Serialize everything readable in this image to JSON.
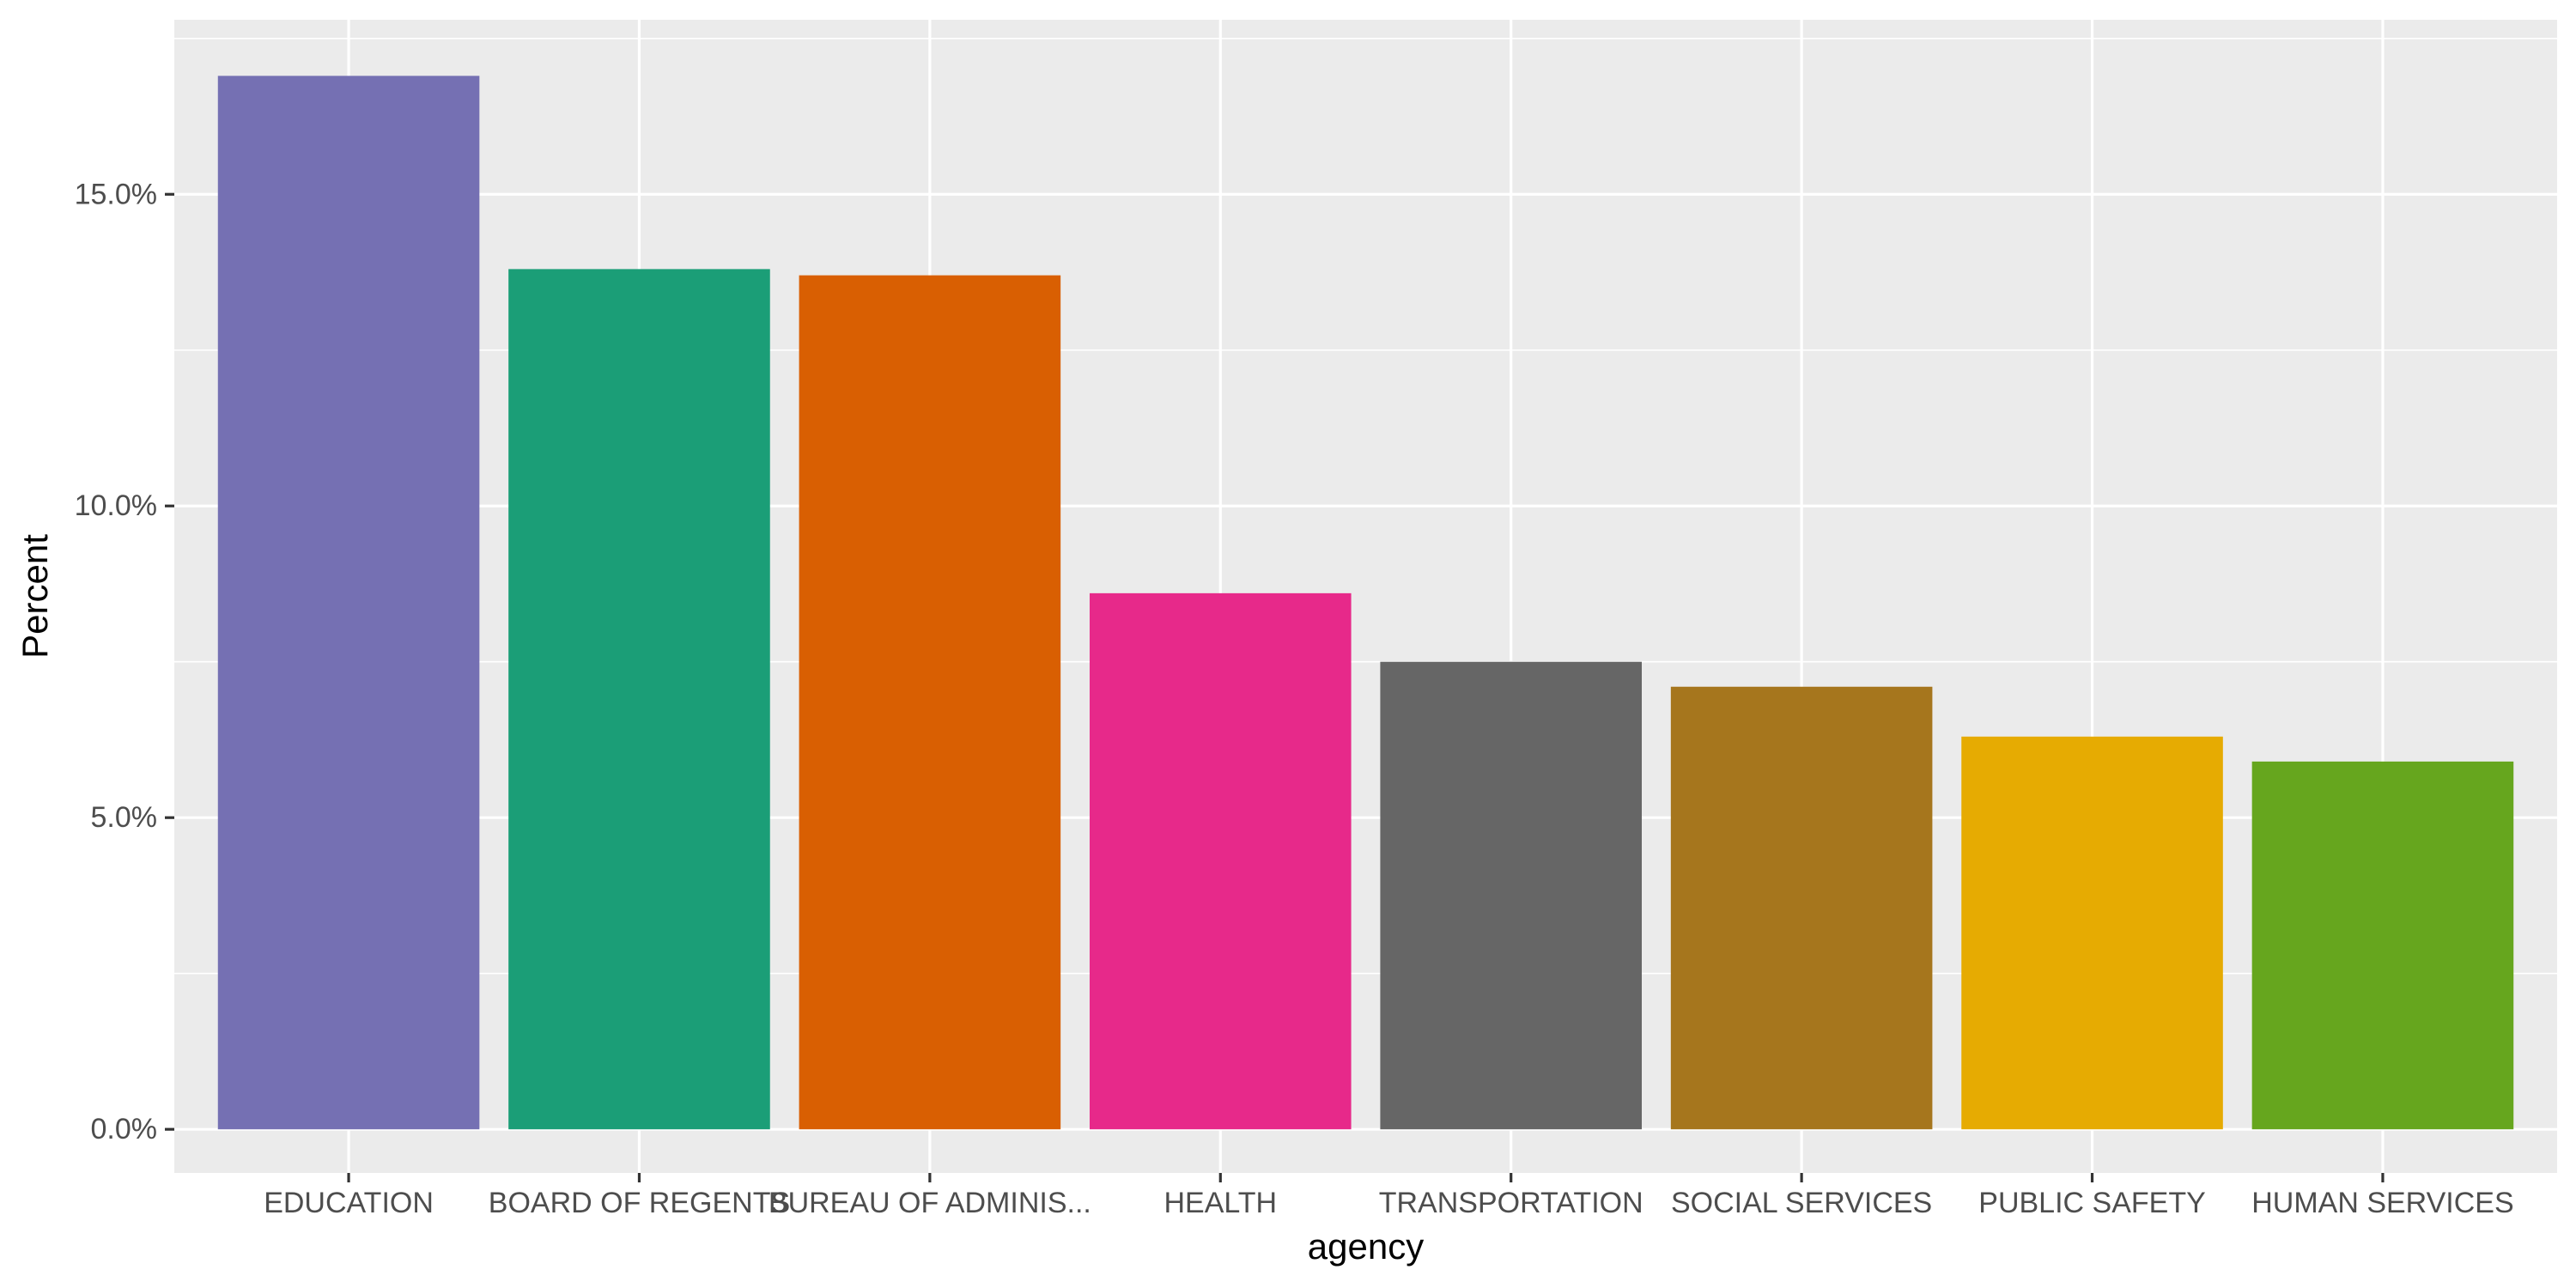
{
  "chart_data": {
    "type": "bar",
    "title": "",
    "xlabel": "agency",
    "ylabel": "Percent",
    "categories": [
      "EDUCATION",
      "BOARD OF REGENTS",
      "BUREAU OF ADMINIS...",
      "HEALTH",
      "TRANSPORTATION",
      "SOCIAL SERVICES",
      "PUBLIC SAFETY",
      "HUMAN SERVICES"
    ],
    "values": [
      16.9,
      13.8,
      13.7,
      8.6,
      7.5,
      7.1,
      6.3,
      5.9
    ],
    "colors": [
      "#7570B3",
      "#1B9E77",
      "#D95F02",
      "#E7298A",
      "#666666",
      "#A6761D",
      "#E6AB02",
      "#66A61E"
    ],
    "ylim": [
      -0.7,
      17.8
    ],
    "yticks": [
      0,
      5,
      10,
      15
    ],
    "ytick_labels": [
      "0.0%",
      "5.0%",
      "10.0%",
      "15.0%"
    ],
    "grid": true,
    "legend": "none",
    "panel_background": "#EBEBEB",
    "gridline_color": "#FFFFFF"
  }
}
